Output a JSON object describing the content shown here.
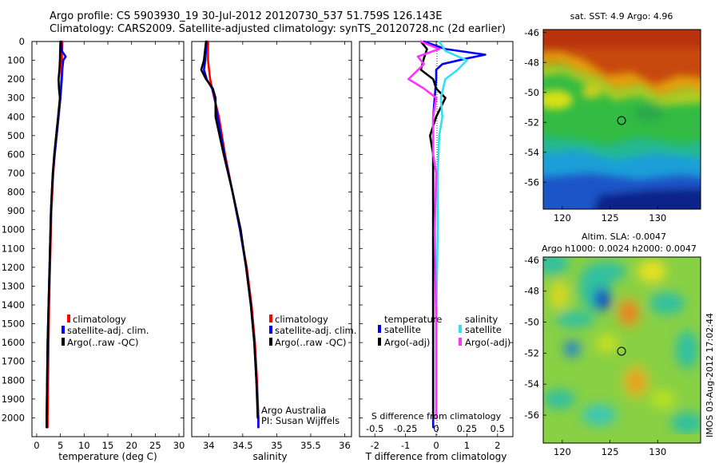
{
  "header": {
    "line1": "Argo profile: CS 5903930_19 30-Jul-2012 20120730_537 51.759S 126.143E",
    "line2": "Climatology: CARS2009. Satellite-adjusted climatology: synTS_20120728.nc (2d earlier)"
  },
  "footer_stamp": "IMOS 03-Aug-2012 17:02:44",
  "colors": {
    "climatology": "#ff0000",
    "satellite": "#0000ff",
    "argo": "#000000",
    "sat_salinity": "#33e0f0",
    "argo_salinity": "#ff33ff"
  },
  "chart_data": [
    {
      "type": "line",
      "panel": "temperature",
      "xlabel": "temperature (deg C)",
      "ylabel": "",
      "xlim": [
        -1,
        31
      ],
      "ylim": [
        2100,
        0
      ],
      "xticks": [
        0,
        5,
        10,
        15,
        20,
        25,
        30
      ],
      "yticks": [
        0,
        100,
        200,
        300,
        400,
        500,
        600,
        700,
        800,
        900,
        1000,
        1100,
        1200,
        1300,
        1400,
        1500,
        1600,
        1700,
        1800,
        1900,
        2000
      ],
      "legend": [
        "climatology",
        "satellite-adj. clim.",
        "Argo(..raw -QC)"
      ],
      "series": [
        {
          "name": "climatology",
          "color": "#ff0000",
          "y": [
            0,
            100,
            200,
            300,
            400,
            500,
            600,
            700,
            800,
            900,
            1000,
            1200,
            1400,
            1600,
            1800,
            2000,
            2050
          ],
          "x": [
            5.4,
            5.3,
            5.2,
            5.0,
            4.6,
            4.2,
            3.8,
            3.5,
            3.3,
            3.1,
            3.0,
            2.8,
            2.6,
            2.5,
            2.4,
            2.3,
            2.3
          ]
        },
        {
          "name": "satellite-adj. clim.",
          "color": "#0000ff",
          "y": [
            0,
            50,
            80,
            100,
            150,
            200,
            300,
            400,
            500,
            600,
            700,
            800,
            900,
            1000,
            1200,
            1400,
            1600,
            1800,
            2000,
            2050
          ],
          "x": [
            5.2,
            5.3,
            6.1,
            5.6,
            5.4,
            5.3,
            5.0,
            4.6,
            4.2,
            3.8,
            3.4,
            3.2,
            3.0,
            2.9,
            2.7,
            2.5,
            2.3,
            2.2,
            2.1,
            2.1
          ]
        },
        {
          "name": "Argo(..raw -QC)",
          "color": "#000000",
          "y": [
            0,
            100,
            150,
            200,
            250,
            300,
            400,
            500,
            600,
            700,
            800,
            900,
            1000,
            1200,
            1400,
            1600,
            1800,
            2000,
            2050
          ],
          "x": [
            5.0,
            4.9,
            4.8,
            4.6,
            4.7,
            4.9,
            4.5,
            4.1,
            3.7,
            3.4,
            3.2,
            3.0,
            2.9,
            2.7,
            2.5,
            2.3,
            2.2,
            2.1,
            2.1
          ]
        }
      ]
    },
    {
      "type": "line",
      "panel": "salinity",
      "xlabel": "salinity",
      "ylabel": "",
      "xlim": [
        33.75,
        36.1
      ],
      "ylim": [
        2100,
        0
      ],
      "xticks": [
        34,
        34.5,
        35,
        35.5,
        36
      ],
      "legend": [
        "climatology",
        "satellite-adj. clim.",
        "Argo(..raw -QC)"
      ],
      "annotation": [
        "Argo Australia",
        "PI: Susan Wijffels"
      ],
      "series": [
        {
          "name": "climatology",
          "color": "#ff0000",
          "y": [
            0,
            100,
            200,
            300,
            400,
            600,
            800,
            1000,
            1200,
            1400,
            1600,
            1800,
            2000,
            2050
          ],
          "x": [
            33.99,
            33.99,
            34.02,
            34.08,
            34.15,
            34.24,
            34.35,
            34.46,
            34.56,
            34.63,
            34.68,
            34.71,
            34.73,
            34.73
          ]
        },
        {
          "name": "satellite-adj. clim.",
          "color": "#0000ff",
          "y": [
            0,
            100,
            150,
            200,
            250,
            300,
            400,
            600,
            800,
            1000,
            1200,
            1400,
            1600,
            1800,
            2000,
            2050
          ],
          "x": [
            33.97,
            33.95,
            33.93,
            33.97,
            34.05,
            34.09,
            34.13,
            34.23,
            34.35,
            34.46,
            34.55,
            34.62,
            34.67,
            34.7,
            34.73,
            34.73
          ]
        },
        {
          "name": "Argo(..raw -QC)",
          "color": "#000000",
          "y": [
            0,
            100,
            150,
            200,
            250,
            300,
            400,
            600,
            800,
            1000,
            1200,
            1400,
            1600,
            1800,
            2000
          ],
          "x": [
            33.96,
            33.93,
            33.89,
            33.96,
            34.06,
            34.1,
            34.1,
            34.22,
            34.35,
            34.47,
            34.55,
            34.62,
            34.67,
            34.7,
            34.72
          ]
        }
      ]
    },
    {
      "type": "line",
      "panel": "differences",
      "xlabel": "T difference from climatology",
      "x2label": "S difference from climatology",
      "xlim": [
        -2.5,
        2.5
      ],
      "ylim": [
        2100,
        0
      ],
      "xticks": [
        -2,
        -1,
        0,
        1,
        2
      ],
      "x2ticks": [
        "-0.5",
        "-0.25",
        "0",
        "0.25",
        "0.5"
      ],
      "legend_titles": [
        "temperature",
        "salinity"
      ],
      "legend": [
        "satellite",
        "Argo(-adj)",
        "satellite",
        "Argo(-adj)"
      ],
      "series": [
        {
          "name": "satellite",
          "color": "#0000ff",
          "y": [
            0,
            40,
            70,
            90,
            120,
            150,
            200,
            300,
            400,
            600,
            1000,
            1500,
            2000,
            2050
          ],
          "x": [
            -0.4,
            0.3,
            1.6,
            1.0,
            0.2,
            0.0,
            0.0,
            -0.05,
            -0.1,
            -0.1,
            -0.1,
            -0.1,
            -0.1,
            -0.1
          ]
        },
        {
          "name": "Argo(-adj)",
          "color": "#000000",
          "y": [
            0,
            40,
            90,
            150,
            200,
            250,
            300,
            400,
            500,
            600,
            1000,
            1500,
            2000
          ],
          "x": [
            -0.5,
            -0.3,
            -0.4,
            -0.5,
            -0.1,
            0.0,
            0.3,
            0.0,
            -0.2,
            -0.1,
            -0.1,
            -0.1,
            -0.1
          ]
        },
        {
          "name": "satellite",
          "color": "#33e0f0",
          "y": [
            0,
            50,
            100,
            150,
            200,
            300,
            400,
            500,
            700,
            1000,
            1500,
            2000
          ],
          "x": [
            0.1,
            0.3,
            1.0,
            0.7,
            0.3,
            0.15,
            0.2,
            0.1,
            0.05,
            0.05,
            0.0,
            0.0
          ]
        },
        {
          "name": "Argo(-adj)",
          "color": "#ff33ff",
          "y": [
            0,
            40,
            80,
            120,
            200,
            250,
            300,
            400,
            600,
            700,
            1000,
            1500,
            2000
          ],
          "x": [
            -0.5,
            0.1,
            -0.6,
            -0.4,
            -0.9,
            -0.4,
            0.0,
            -0.1,
            -0.1,
            0.0,
            -0.05,
            0.0,
            0.0
          ]
        }
      ]
    },
    {
      "type": "heatmap",
      "panel": "sst-map",
      "title": "sat. SST: 4.9 Argo: 4.96",
      "xlim": [
        118,
        134.5
      ],
      "ylim": [
        -57.8,
        -45.8
      ],
      "xticks": [
        120,
        125,
        130
      ],
      "yticks": [
        -46,
        -48,
        -50,
        -52,
        -54,
        -56
      ],
      "marker": {
        "lon": 126.143,
        "lat": -51.759
      }
    },
    {
      "type": "heatmap",
      "panel": "sla-map",
      "title": "Altim. SLA: -0.0047",
      "subtitle": "Argo h1000: 0.0024 h2000: 0.0047",
      "xlim": [
        118,
        134.5
      ],
      "ylim": [
        -57.8,
        -45.8
      ],
      "xticks": [
        120,
        125,
        130
      ],
      "yticks": [
        -46,
        -48,
        -50,
        -52,
        -54,
        -56
      ],
      "marker": {
        "lon": 126.143,
        "lat": -51.759
      }
    }
  ]
}
